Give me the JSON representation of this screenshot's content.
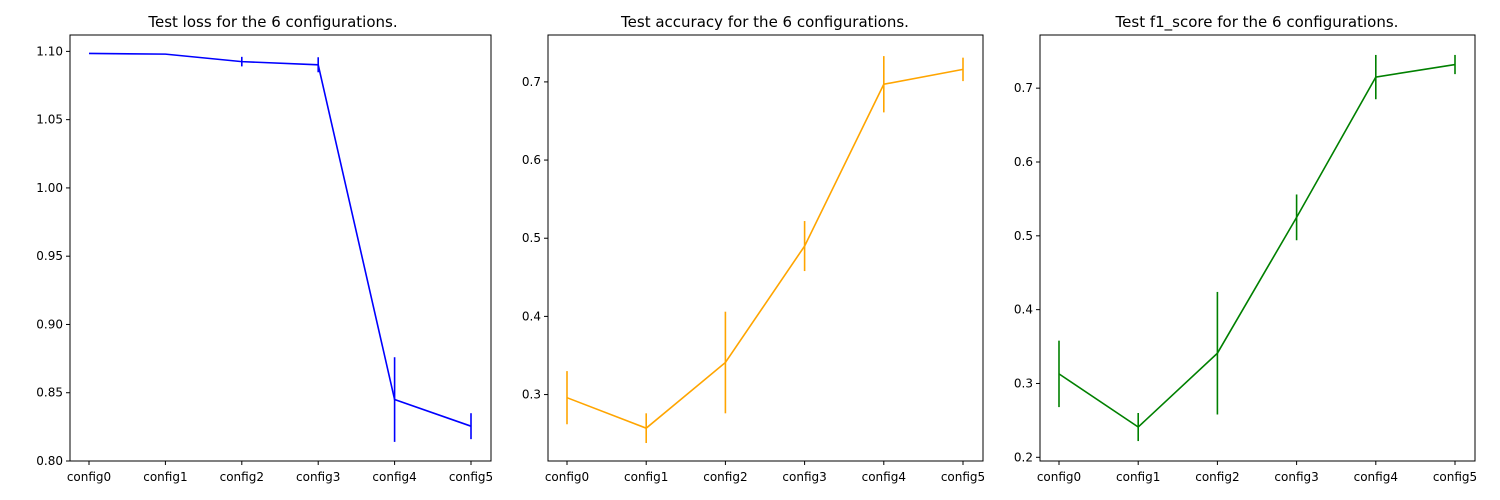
{
  "chart_data": [
    {
      "type": "line",
      "title": "Test loss for the 6 configurations.",
      "xlabel": "",
      "ylabel": "",
      "categories": [
        "config0",
        "config1",
        "config2",
        "config3",
        "config4",
        "config5"
      ],
      "ylim": [
        0.8,
        1.112
      ],
      "yticks": [
        0.8,
        0.85,
        0.9,
        0.95,
        1.0,
        1.05,
        1.1
      ],
      "ytick_labels": [
        "0.80",
        "0.85",
        "0.90",
        "0.95",
        "1.00",
        "1.05",
        "1.10"
      ],
      "grid": false,
      "series": [
        {
          "color": "#0000ff",
          "values": [
            1.0985,
            1.098,
            1.0925,
            1.0902,
            0.845,
            0.8255
          ],
          "errors": [
            0.0,
            0.0,
            0.0035,
            0.0055,
            0.031,
            0.0095
          ]
        }
      ]
    },
    {
      "type": "line",
      "title": "Test accuracy for the 6 configurations.",
      "xlabel": "",
      "ylabel": "",
      "categories": [
        "config0",
        "config1",
        "config2",
        "config3",
        "config4",
        "config5"
      ],
      "ylim": [
        0.215,
        0.76
      ],
      "yticks": [
        0.3,
        0.4,
        0.5,
        0.6,
        0.7
      ],
      "ytick_labels": [
        "0.3",
        "0.4",
        "0.5",
        "0.6",
        "0.7"
      ],
      "grid": false,
      "series": [
        {
          "color": "#ffa500",
          "values": [
            0.296,
            0.257,
            0.341,
            0.49,
            0.697,
            0.716
          ],
          "errors": [
            0.034,
            0.019,
            0.065,
            0.032,
            0.036,
            0.015
          ]
        }
      ]
    },
    {
      "type": "line",
      "title": "Test f1_score for the 6 configurations.",
      "xlabel": "",
      "ylabel": "",
      "categories": [
        "config0",
        "config1",
        "config2",
        "config3",
        "config4",
        "config5"
      ],
      "ylim": [
        0.195,
        0.772
      ],
      "yticks": [
        0.2,
        0.3,
        0.4,
        0.5,
        0.6,
        0.7
      ],
      "ytick_labels": [
        "0.2",
        "0.3",
        "0.4",
        "0.5",
        "0.6",
        "0.7"
      ],
      "grid": false,
      "series": [
        {
          "color": "#008000",
          "values": [
            0.313,
            0.241,
            0.341,
            0.525,
            0.715,
            0.732
          ],
          "errors": [
            0.045,
            0.019,
            0.083,
            0.031,
            0.03,
            0.013
          ]
        }
      ]
    }
  ]
}
